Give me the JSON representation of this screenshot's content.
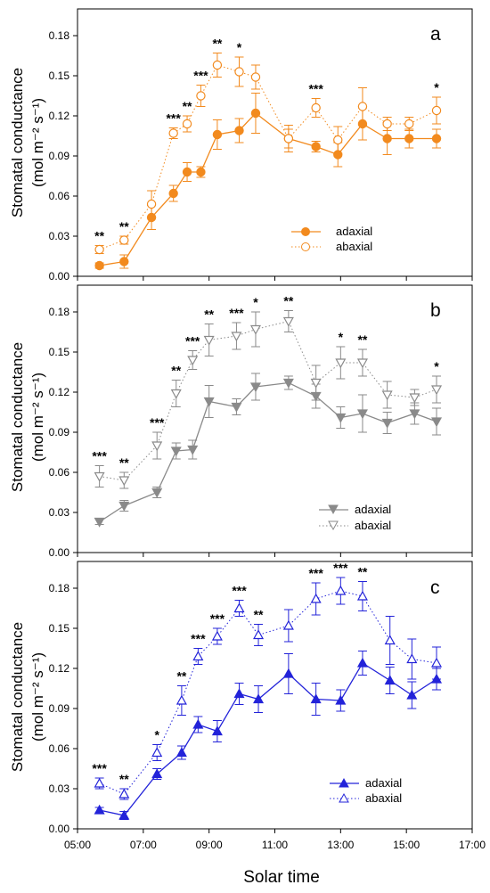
{
  "xlabel": "Solar time",
  "xticks": [
    "05:00",
    "07:00",
    "09:00",
    "11:00",
    "13:00",
    "15:00",
    "17:00"
  ],
  "xlim": [
    5,
    17
  ],
  "chart_data": [
    {
      "type": "line",
      "panel": "a",
      "ylabel": "Stomatal conductance",
      "ylabel_unit": "(mol m⁻² s⁻¹)",
      "ylim": [
        0,
        0.2
      ],
      "yticks": [
        "0.00",
        "0.03",
        "0.06",
        "0.09",
        "0.12",
        "0.15",
        "0.18"
      ],
      "x": [
        "05:40",
        "06:25",
        "07:15",
        "07:55",
        "08:20",
        "08:45",
        "09:15",
        "09:55",
        "10:25",
        "11:25",
        "12:15",
        "12:55",
        "13:40",
        "14:25",
        "15:05",
        "15:55"
      ],
      "series": [
        {
          "name": "adaxial",
          "marker": "circle-filled",
          "line": "solid",
          "color": "#f28a1e",
          "values": [
            0.008,
            0.011,
            0.044,
            0.062,
            0.078,
            0.078,
            0.106,
            0.109,
            0.122,
            0.103,
            0.097,
            0.091,
            0.114,
            0.103,
            0.103,
            0.103
          ],
          "errors": [
            0.002,
            0.005,
            0.009,
            0.006,
            0.007,
            0.004,
            0.011,
            0.009,
            0.015,
            0.007,
            0.004,
            0.009,
            0.012,
            0.012,
            0.007,
            0.007
          ]
        },
        {
          "name": "abaxial",
          "marker": "circle-open",
          "line": "dotted",
          "color": "#f28a1e",
          "values": [
            0.02,
            0.027,
            0.054,
            0.107,
            0.114,
            0.135,
            0.158,
            0.153,
            0.149,
            0.103,
            0.126,
            0.102,
            0.127,
            0.114,
            0.114,
            0.124
          ],
          "errors": [
            0.003,
            0.003,
            0.01,
            0.004,
            0.006,
            0.008,
            0.009,
            0.011,
            0.009,
            0.01,
            0.007,
            0.01,
            0.014,
            0.005,
            0.005,
            0.01
          ]
        }
      ],
      "significance": [
        "**",
        "**",
        "",
        "***",
        "**",
        "***",
        "**",
        "*",
        "",
        "",
        "***",
        "",
        "",
        "",
        "",
        "*"
      ],
      "legend_position": "bottom-right"
    },
    {
      "type": "line",
      "panel": "b",
      "ylabel": "Stomatal conductance",
      "ylabel_unit": "(mol m⁻² s⁻¹)",
      "ylim": [
        0,
        0.2
      ],
      "yticks": [
        "0.00",
        "0.03",
        "0.06",
        "0.09",
        "0.12",
        "0.15",
        "0.18"
      ],
      "x": [
        "05:40",
        "06:25",
        "07:25",
        "08:00",
        "08:30",
        "09:00",
        "09:50",
        "10:25",
        "11:25",
        "12:15",
        "13:00",
        "13:40",
        "14:25",
        "15:15",
        "15:55"
      ],
      "series": [
        {
          "name": "adaxial",
          "marker": "triangle-down-filled",
          "line": "solid",
          "color": "#8a8a8a",
          "values": [
            0.023,
            0.035,
            0.045,
            0.076,
            0.077,
            0.113,
            0.109,
            0.124,
            0.127,
            0.117,
            0.101,
            0.104,
            0.097,
            0.104,
            0.098
          ],
          "errors": [
            0.002,
            0.004,
            0.004,
            0.006,
            0.007,
            0.012,
            0.006,
            0.01,
            0.005,
            0.009,
            0.008,
            0.014,
            0.008,
            0.008,
            0.01
          ]
        },
        {
          "name": "abaxial",
          "marker": "triangle-down-open",
          "line": "dotted",
          "color": "#8a8a8a",
          "values": [
            0.057,
            0.054,
            0.08,
            0.119,
            0.144,
            0.159,
            0.162,
            0.167,
            0.173,
            0.127,
            0.142,
            0.142,
            0.118,
            0.116,
            0.122
          ],
          "errors": [
            0.008,
            0.006,
            0.01,
            0.01,
            0.007,
            0.012,
            0.01,
            0.013,
            0.008,
            0.013,
            0.012,
            0.01,
            0.01,
            0.006,
            0.01
          ]
        }
      ],
      "significance": [
        "***",
        "**",
        "***",
        "**",
        "***",
        "**",
        "***",
        "*",
        "**",
        "",
        "*",
        "**",
        "",
        "",
        "*"
      ],
      "legend_position": "bottom-right"
    },
    {
      "type": "line",
      "panel": "c",
      "ylabel": "Stomatal conductance",
      "ylabel_unit": "(mol m⁻² s⁻¹)",
      "ylim": [
        0,
        0.2
      ],
      "yticks": [
        "0.00",
        "0.03",
        "0.06",
        "0.09",
        "0.12",
        "0.15",
        "0.18"
      ],
      "x": [
        "05:40",
        "06:25",
        "07:25",
        "08:10",
        "08:40",
        "09:15",
        "09:55",
        "10:30",
        "11:25",
        "12:15",
        "13:00",
        "13:40",
        "14:30",
        "15:10",
        "15:55"
      ],
      "series": [
        {
          "name": "adaxial",
          "marker": "triangle-up-filled",
          "line": "solid",
          "color": "#2323d9",
          "values": [
            0.014,
            0.01,
            0.041,
            0.057,
            0.078,
            0.073,
            0.101,
            0.097,
            0.116,
            0.097,
            0.096,
            0.124,
            0.111,
            0.1,
            0.112
          ],
          "errors": [
            0.002,
            0.003,
            0.004,
            0.005,
            0.006,
            0.008,
            0.008,
            0.01,
            0.015,
            0.012,
            0.008,
            0.009,
            0.01,
            0.01,
            0.008
          ]
        },
        {
          "name": "abaxial",
          "marker": "triangle-up-open",
          "line": "dotted",
          "color": "#2323d9",
          "values": [
            0.034,
            0.026,
            0.057,
            0.096,
            0.129,
            0.144,
            0.165,
            0.145,
            0.152,
            0.172,
            0.178,
            0.174,
            0.141,
            0.127,
            0.124
          ],
          "errors": [
            0.004,
            0.004,
            0.006,
            0.011,
            0.006,
            0.006,
            0.006,
            0.008,
            0.012,
            0.012,
            0.01,
            0.011,
            0.018,
            0.015,
            0.012
          ]
        }
      ],
      "significance": [
        "***",
        "**",
        "*",
        "**",
        "***",
        "***",
        "***",
        "**",
        "",
        "***",
        "***",
        "**",
        "",
        "",
        ""
      ],
      "legend_position": "bottom-right"
    }
  ]
}
